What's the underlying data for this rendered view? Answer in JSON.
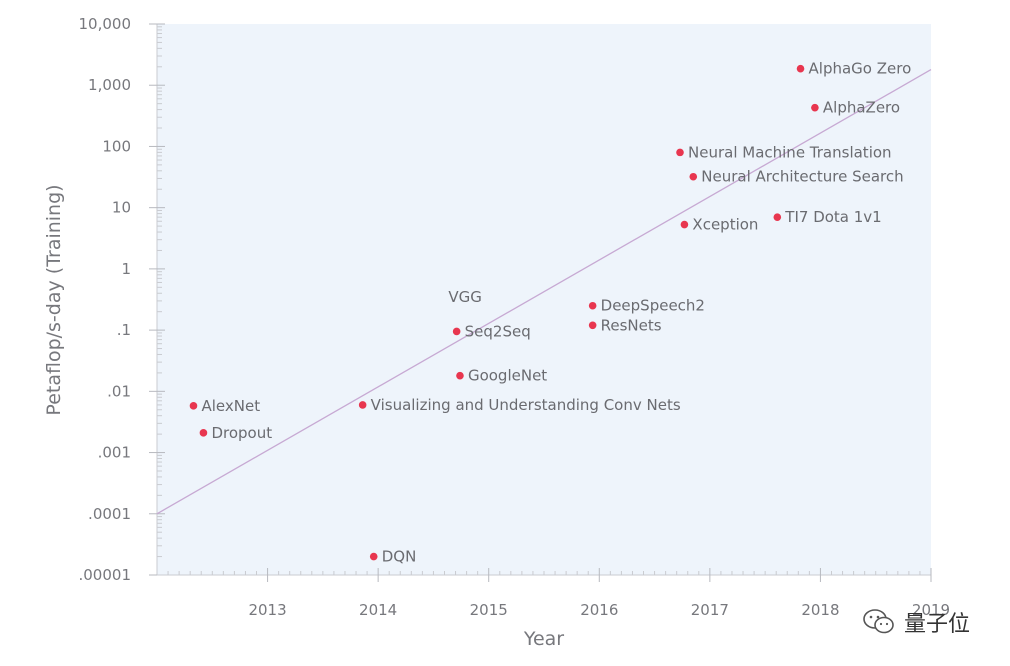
{
  "chart_data": {
    "type": "scatter",
    "xlabel": "Year",
    "ylabel": "Petaflop/s-day (Training)",
    "y_scale": "log",
    "xlim": [
      2012.0,
      2019.0
    ],
    "ylim": [
      1e-05,
      10000
    ],
    "x_ticks": [
      {
        "value": 2013,
        "label": "2013"
      },
      {
        "value": 2014,
        "label": "2014"
      },
      {
        "value": 2015,
        "label": "2015"
      },
      {
        "value": 2016,
        "label": "2016"
      },
      {
        "value": 2017,
        "label": "2017"
      },
      {
        "value": 2018,
        "label": "2018"
      },
      {
        "value": 2019,
        "label": "2019"
      }
    ],
    "y_ticks": [
      {
        "value": 10000,
        "label": "10,000"
      },
      {
        "value": 1000,
        "label": "1,000"
      },
      {
        "value": 100,
        "label": "100"
      },
      {
        "value": 10,
        "label": "10"
      },
      {
        "value": 1,
        "label": "1"
      },
      {
        "value": 0.1,
        "label": ".1"
      },
      {
        "value": 0.01,
        "label": ".01"
      },
      {
        "value": 0.001,
        "label": ".001"
      },
      {
        "value": 0.0001,
        "label": ".0001"
      },
      {
        "value": 1e-05,
        "label": ".00001"
      }
    ],
    "points": [
      {
        "label": "AlexNet",
        "x": 2012.33,
        "y": 0.0058
      },
      {
        "label": "Dropout",
        "x": 2012.42,
        "y": 0.0021
      },
      {
        "label": "DQN",
        "x": 2013.96,
        "y": 2e-05
      },
      {
        "label": "Visualizing and Understanding Conv Nets",
        "x": 2013.86,
        "y": 0.006
      },
      {
        "label": "Seq2Seq",
        "x": 2014.71,
        "y": 0.095
      },
      {
        "label": "VGG",
        "x": 2014.68,
        "y": 0.1
      },
      {
        "label": "GoogleNet",
        "x": 2014.74,
        "y": 0.018
      },
      {
        "label": "DeepSpeech2",
        "x": 2015.94,
        "y": 0.25
      },
      {
        "label": "ResNets",
        "x": 2015.94,
        "y": 0.12
      },
      {
        "label": "Neural Machine Translation",
        "x": 2016.73,
        "y": 80
      },
      {
        "label": "Neural Architecture Search",
        "x": 2016.85,
        "y": 32
      },
      {
        "label": "Xception",
        "x": 2016.77,
        "y": 5.3
      },
      {
        "label": "TI7 Dota 1v1",
        "x": 2017.61,
        "y": 7
      },
      {
        "label": "AlphaGo Zero",
        "x": 2017.82,
        "y": 1860
      },
      {
        "label": "AlphaZero",
        "x": 2017.95,
        "y": 430
      }
    ],
    "trend_line": {
      "from": {
        "x": 2012.0,
        "y": 0.0001
      },
      "to": {
        "x": 2019.0,
        "y": 1800
      }
    },
    "point_color": "#e8364f",
    "trend_color": "#c7a9d3",
    "plot_background": "#eef4fb",
    "grid": false
  },
  "watermark": {
    "text": "量子位",
    "icon": "wechat-icon"
  }
}
